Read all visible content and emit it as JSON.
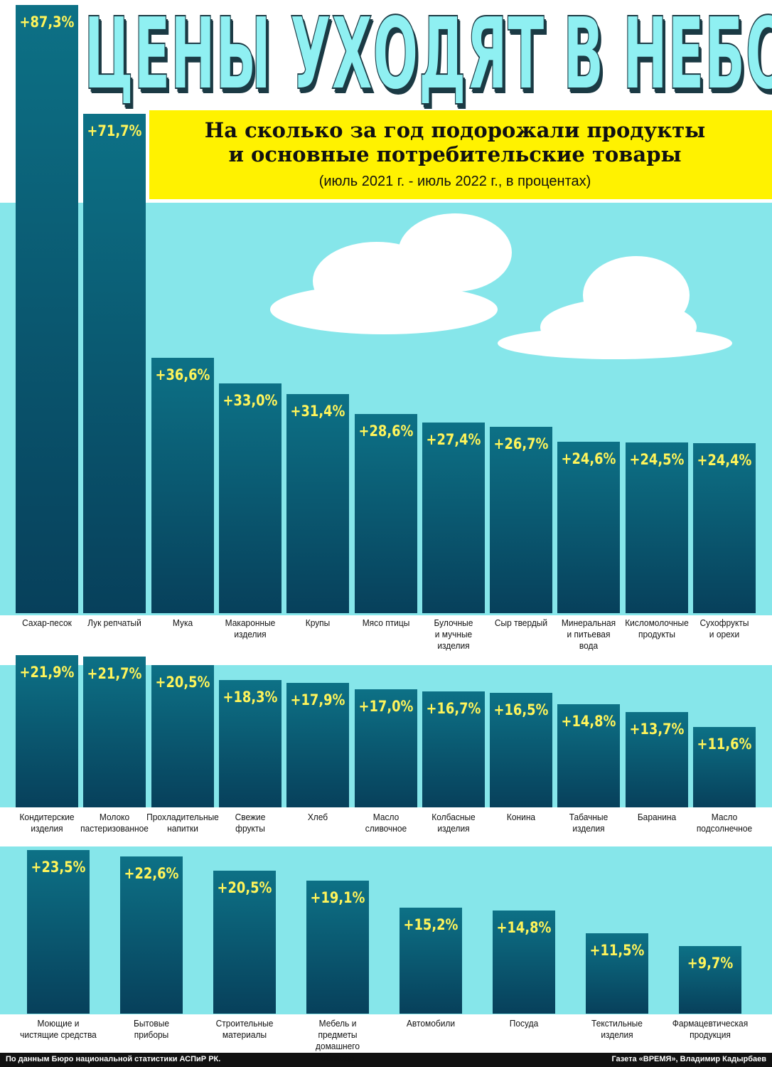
{
  "header": {
    "title": "ЦЕНЫ УХОДЯТ В НЕБО",
    "subtitle": "На сколько за год подорожали продукты\nи основные потребительские товары",
    "period": "(июль 2021 г. - июль 2022 г., в процентах)"
  },
  "chart_data": [
    {
      "type": "bar",
      "categories": [
        "Сахар-песок",
        "Лук репчатый",
        "Мука",
        "Макаронные\nизделия",
        "Крупы",
        "Мясо птицы",
        "Булочные\nи мучные\nизделия",
        "Сыр твердый",
        "Минеральная\nи питьевая\nвода",
        "Кисломолочные\nпродукты",
        "Сухофрукты\nи орехи"
      ],
      "values": [
        87.3,
        71.7,
        36.6,
        33.0,
        31.4,
        28.6,
        27.4,
        26.7,
        24.6,
        24.5,
        24.4
      ],
      "value_labels": [
        "+87,3%",
        "+71,7%",
        "+36,6%",
        "+33,0%",
        "+31,4%",
        "+28,6%",
        "+27,4%",
        "+26,7%",
        "+24,6%",
        "+24,5%",
        "+24,4%"
      ],
      "ylim": [
        0,
        88
      ]
    },
    {
      "type": "bar",
      "categories": [
        "Кондитерские\nизделия",
        "Молоко\nпастеризованное",
        "Прохладительные\nнапитки",
        "Свежие\nфрукты",
        "Хлеб",
        "Масло\nсливочное",
        "Колбасные\nизделия",
        "Конина",
        "Табачные\nизделия",
        "Баранина",
        "Масло\nподсолнечное"
      ],
      "values": [
        21.9,
        21.7,
        20.5,
        18.3,
        17.9,
        17.0,
        16.7,
        16.5,
        14.8,
        13.7,
        11.6
      ],
      "value_labels": [
        "+21,9%",
        "+21,7%",
        "+20,5%",
        "+18,3%",
        "+17,9%",
        "+17,0%",
        "+16,7%",
        "+16,5%",
        "+14,8%",
        "+13,7%",
        "+11,6%"
      ],
      "ylim": [
        0,
        22
      ]
    },
    {
      "type": "bar",
      "categories": [
        "Моющие и\nчистящие средства",
        "Бытовые\nприборы",
        "Строительные\nматериалы",
        "Мебель и предметы\nдомашнего обихода",
        "Автомобили",
        "Посуда",
        "Текстильные\nизделия",
        "Фармацевтическая\nпродукция"
      ],
      "values": [
        23.5,
        22.6,
        20.5,
        19.1,
        15.2,
        14.8,
        11.5,
        9.7
      ],
      "value_labels": [
        "+23,5%",
        "+22,6%",
        "+20,5%",
        "+19,1%",
        "+15,2%",
        "+14,8%",
        "+11,5%",
        "+9,7%"
      ],
      "ylim": [
        0,
        24
      ]
    }
  ],
  "footer": {
    "source": "По данным Бюро национальной статистики АСПиР РК.",
    "credit": "Газета «ВРЕМЯ», Владимир Кадырбаев"
  }
}
